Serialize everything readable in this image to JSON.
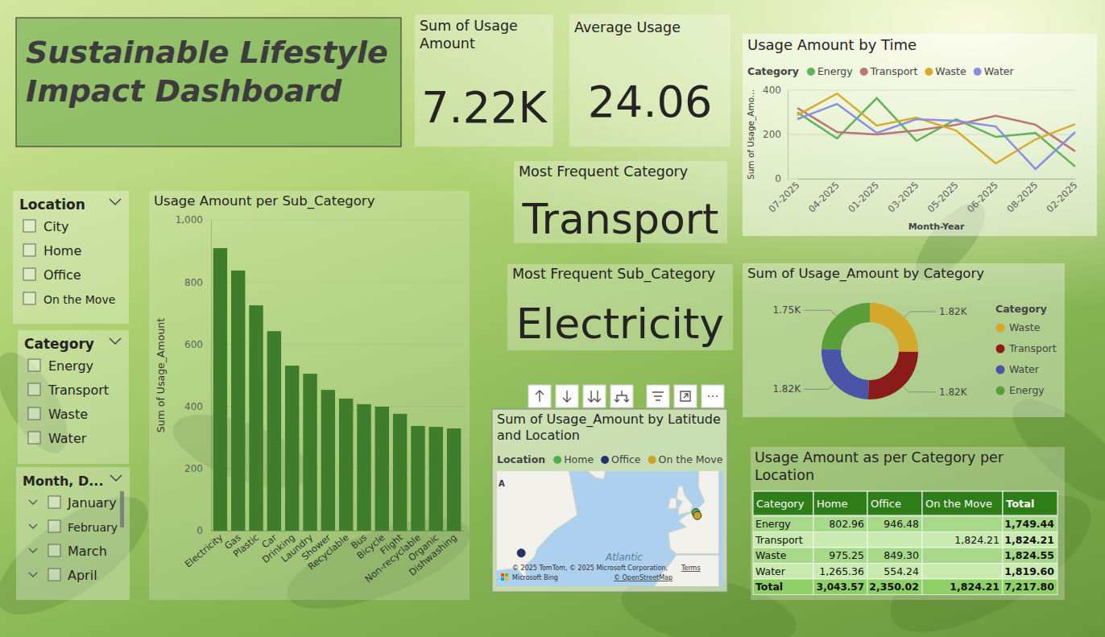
{
  "header": {
    "title": "Sustainable Lifestyle Impact Dashboard"
  },
  "cards": [
    {
      "label": "Sum of Usage Amount",
      "value": "7.22K"
    },
    {
      "label": "Average Usage",
      "value": "24.06"
    },
    {
      "label": "Most Frequent Category",
      "value": "Transport"
    },
    {
      "label": "Most Frequent Sub_Category",
      "value": "Electricity"
    }
  ],
  "slicers": [
    {
      "title": "Location",
      "items": [
        "City",
        "Home",
        "Office",
        "On the Move"
      ]
    },
    {
      "title": "Category",
      "items": [
        "Energy",
        "Transport",
        "Waste",
        "Water"
      ]
    },
    {
      "title": "Month, D...",
      "items": [
        "January",
        "February",
        "March",
        "April"
      ]
    }
  ],
  "chart_data": [
    {
      "type": "line",
      "title": "Usage Amount by Time",
      "x_label": "Month-Year",
      "y_label": "Sum of Usage_Amo...",
      "legend_title": "Category",
      "legend": "top-left",
      "categories": [
        "07-2025",
        "04-2025",
        "01-2025",
        "03-2025",
        "05-2025",
        "06-2025",
        "08-2025",
        "02-2025"
      ],
      "series": [
        {
          "name": "Energy",
          "color": "#5fb35a",
          "values": [
            300,
            182,
            364,
            171,
            269,
            189,
            207,
            55
          ]
        },
        {
          "name": "Transport",
          "color": "#b9757a",
          "values": [
            320,
            211,
            200,
            218,
            244,
            284,
            244,
            124
          ]
        },
        {
          "name": "Waste",
          "color": "#d6ab2e",
          "values": [
            287,
            385,
            240,
            276,
            218,
            69,
            178,
            247
          ]
        },
        {
          "name": "Water",
          "color": "#8a8fe0",
          "values": [
            269,
            338,
            207,
            269,
            262,
            236,
            44,
            211
          ]
        }
      ],
      "ylim": [
        0,
        400
      ],
      "yticks": [
        0,
        200,
        400
      ],
      "grid": true
    },
    {
      "type": "bar",
      "title": "Usage Amount per Sub_Category",
      "y_label": "Sum of Usage_Amount",
      "categories": [
        "Electricity",
        "Gas",
        "Plastic",
        "Car",
        "Drinking",
        "Laundry",
        "Shower",
        "Recyclable",
        "Bus",
        "Bicycle",
        "Flight",
        "Non-recyclable",
        "Organic",
        "Dishwashing"
      ],
      "values": [
        909,
        837,
        725,
        642,
        531,
        505,
        453,
        425,
        407,
        399,
        376,
        337,
        334,
        329
      ],
      "color": "#3f7d2c",
      "ylim": [
        0,
        1000
      ],
      "yticks": [
        0,
        200,
        400,
        600,
        800,
        {
          "value": 1000,
          "label": "1,000"
        }
      ],
      "grid": true
    },
    {
      "type": "pie",
      "title": "Sum of Usage_Amount by Category",
      "legend_title": "Category",
      "legend": "right",
      "categories": [
        "Waste",
        "Transport",
        "Water",
        "Energy"
      ],
      "values": [
        1824.55,
        1824.21,
        1819.6,
        1749.44
      ],
      "value_labels": [
        "1.82K",
        "1.82K",
        "1.82K",
        "1.75K"
      ],
      "colors": [
        "#d4a82a",
        "#8b1a1a",
        "#4a55a8",
        "#5a9e3a"
      ],
      "data_labels": true
    },
    {
      "type": "map",
      "title": "Sum of Usage_Amount by Latitude and Location",
      "legend_title": "Location",
      "legend": "top-left",
      "series": [
        {
          "name": "Home",
          "color": "#4fae4a",
          "lat": [
            50.7
          ],
          "lon": [
            3.7
          ]
        },
        {
          "name": "Office",
          "color": "#25306e",
          "lat": [
            36.3
          ],
          "lon": [
            -82.8
          ]
        },
        {
          "name": "On the Move",
          "color": "#c9a227",
          "lat": [
            49.8
          ],
          "lon": [
            4.4
          ]
        }
      ],
      "xlim": [
        -90,
        12
      ],
      "ylim": [
        22,
        62
      ],
      "annotations": [
        "A",
        "Atlantic",
        "© 2025 TomTom, © 2025 Microsoft Corporation,",
        "Terms",
        "© OpenStreetMap",
        "Microsoft Bing"
      ]
    }
  ],
  "table": {
    "title": "Usage Amount as per Category per Location",
    "columns": [
      "Category",
      "Home",
      "Office",
      "On the Move",
      "Total"
    ],
    "rows": [
      [
        "Energy",
        "802.96",
        "946.48",
        null,
        "1,749.44"
      ],
      [
        "Transport",
        null,
        null,
        "1,824.21",
        "1,824.21"
      ],
      [
        "Waste",
        "975.25",
        "849.30",
        null,
        "1,824.55"
      ],
      [
        "Water",
        "1,265.36",
        "554.24",
        null,
        "1,819.60"
      ],
      [
        "Total",
        "3,043.57",
        "2,350.02",
        "1,824.21",
        "7,217.80"
      ]
    ]
  }
}
